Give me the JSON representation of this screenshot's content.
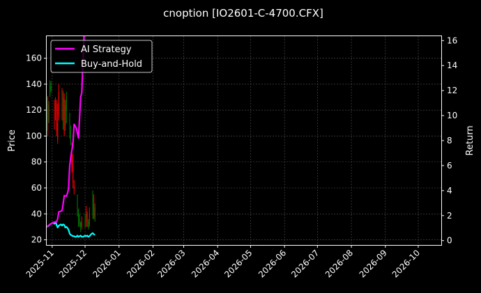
{
  "chart_data": {
    "type": "candlestick+line",
    "title": "cnoption [IO2601-C-4700.CFX]",
    "xlabel": "",
    "ylabel_left": "Price",
    "ylabel_right": "Return",
    "grid": true,
    "legend_placement": "top-left",
    "x_ticks": [
      "2025-11",
      "2025-12",
      "2026-01",
      "2026-02",
      "2026-03",
      "2026-04",
      "2026-05",
      "2026-06",
      "2026-07",
      "2026-08",
      "2026-09",
      "2026-10"
    ],
    "x_range": [
      "2025-10-27",
      "2026-10-22"
    ],
    "y_left": {
      "ticks": [
        20,
        40,
        60,
        80,
        100,
        120,
        140,
        160
      ],
      "range": [
        16,
        177
      ]
    },
    "y_right": {
      "ticks": [
        0,
        2,
        4,
        6,
        8,
        10,
        12,
        14,
        16
      ],
      "range": [
        -0.35,
        16.35
      ]
    },
    "colors": {
      "background": "#000000",
      "up": "#008000",
      "down": "#ff0000",
      "ai_strategy": "#ff00ff",
      "buy_and_hold": "#00ffff",
      "grid": "#555555",
      "text": "#ffffff"
    },
    "candles": [
      {
        "date": "2025-10-27",
        "open": 118,
        "high": 130,
        "low": 104,
        "close": 125
      },
      {
        "date": "2025-10-28",
        "open": 125,
        "high": 131,
        "low": 100,
        "close": 110
      },
      {
        "date": "2025-10-29",
        "open": 112,
        "high": 127,
        "low": 110,
        "close": 124
      },
      {
        "date": "2025-10-30",
        "open": 132,
        "high": 143,
        "low": 130,
        "close": 140
      },
      {
        "date": "2025-10-31",
        "open": 136,
        "high": 142,
        "low": 134,
        "close": 138
      },
      {
        "date": "2025-11-03",
        "open": 118,
        "high": 128,
        "low": 105,
        "close": 115
      },
      {
        "date": "2025-11-04",
        "open": 126,
        "high": 130,
        "low": 112,
        "close": 120
      },
      {
        "date": "2025-11-05",
        "open": 125,
        "high": 128,
        "low": 100,
        "close": 104
      },
      {
        "date": "2025-11-06",
        "open": 110,
        "high": 125,
        "low": 94,
        "close": 97
      },
      {
        "date": "2025-11-07",
        "open": 134,
        "high": 140,
        "low": 112,
        "close": 116
      },
      {
        "date": "2025-11-10",
        "open": 132,
        "high": 137,
        "low": 112,
        "close": 115
      },
      {
        "date": "2025-11-11",
        "open": 112,
        "high": 135,
        "low": 105,
        "close": 130
      },
      {
        "date": "2025-11-12",
        "open": 128,
        "high": 133,
        "low": 100,
        "close": 102
      },
      {
        "date": "2025-11-13",
        "open": 108,
        "high": 128,
        "low": 104,
        "close": 124
      },
      {
        "date": "2025-11-14",
        "open": 120,
        "high": 134,
        "low": 110,
        "close": 130
      },
      {
        "date": "2025-11-17",
        "open": 105,
        "high": 118,
        "low": 98,
        "close": 115
      },
      {
        "date": "2025-11-18",
        "open": 95,
        "high": 108,
        "low": 93,
        "close": 104
      },
      {
        "date": "2025-11-19",
        "open": 90,
        "high": 95,
        "low": 72,
        "close": 75
      },
      {
        "date": "2025-11-20",
        "open": 78,
        "high": 86,
        "low": 60,
        "close": 64
      },
      {
        "date": "2025-11-21",
        "open": 62,
        "high": 66,
        "low": 55,
        "close": 58
      },
      {
        "date": "2025-11-24",
        "open": 40,
        "high": 55,
        "low": 38,
        "close": 52
      },
      {
        "date": "2025-11-25",
        "open": 36,
        "high": 44,
        "low": 30,
        "close": 40
      },
      {
        "date": "2025-11-26",
        "open": 32,
        "high": 40,
        "low": 30,
        "close": 36
      },
      {
        "date": "2025-11-27",
        "open": 30,
        "high": 34,
        "low": 26,
        "close": 33
      },
      {
        "date": "2025-11-28",
        "open": 34,
        "high": 38,
        "low": 28,
        "close": 30
      },
      {
        "date": "2025-12-01",
        "open": 30,
        "high": 40,
        "low": 29,
        "close": 38
      },
      {
        "date": "2025-12-02",
        "open": 36,
        "high": 46,
        "low": 30,
        "close": 34
      },
      {
        "date": "2025-12-03",
        "open": 36,
        "high": 42,
        "low": 30,
        "close": 40
      },
      {
        "date": "2025-12-04",
        "open": 30,
        "high": 36,
        "low": 28,
        "close": 34
      },
      {
        "date": "2025-12-05",
        "open": 40,
        "high": 45,
        "low": 30,
        "close": 32
      },
      {
        "date": "2025-12-08",
        "open": 40,
        "high": 58,
        "low": 36,
        "close": 55
      },
      {
        "date": "2025-12-09",
        "open": 52,
        "high": 55,
        "low": 36,
        "close": 38
      },
      {
        "date": "2025-12-10",
        "open": 36,
        "high": 48,
        "low": 34,
        "close": 45
      }
    ],
    "series": [
      {
        "name": "AI Strategy",
        "axis": "right",
        "points": [
          [
            "2025-10-27",
            1.1
          ],
          [
            "2025-10-30",
            1.3
          ],
          [
            "2025-11-02",
            1.45
          ],
          [
            "2025-11-04",
            1.5
          ],
          [
            "2025-11-05",
            1.5
          ],
          [
            "2025-11-06",
            1.75
          ],
          [
            "2025-11-07",
            2.3
          ],
          [
            "2025-11-09",
            2.35
          ],
          [
            "2025-11-10",
            2.4
          ],
          [
            "2025-11-11",
            2.95
          ],
          [
            "2025-11-12",
            3.6
          ],
          [
            "2025-11-14",
            3.55
          ],
          [
            "2025-11-15",
            3.8
          ],
          [
            "2025-11-16",
            4.2
          ],
          [
            "2025-11-17",
            6.0
          ],
          [
            "2025-11-18",
            6.7
          ],
          [
            "2025-11-20",
            7.8
          ],
          [
            "2025-11-21",
            9.3
          ],
          [
            "2025-11-23",
            9.0
          ],
          [
            "2025-11-25",
            8.2
          ],
          [
            "2025-11-27",
            11.5
          ],
          [
            "2025-11-28",
            11.8
          ],
          [
            "2025-11-29",
            14.2
          ],
          [
            "2025-11-30",
            16.4
          ]
        ]
      },
      {
        "name": "Buy-and-Hold",
        "axis": "right",
        "points": [
          [
            "2025-10-27",
            1.1
          ],
          [
            "2025-10-28",
            1.15
          ],
          [
            "2025-10-29",
            1.2
          ],
          [
            "2025-10-30",
            1.3
          ],
          [
            "2025-10-31",
            1.35
          ],
          [
            "2025-11-01",
            1.4
          ],
          [
            "2025-11-02",
            1.45
          ],
          [
            "2025-11-03",
            1.35
          ],
          [
            "2025-11-04",
            1.5
          ],
          [
            "2025-11-05",
            1.25
          ],
          [
            "2025-11-06",
            1.05
          ],
          [
            "2025-11-07",
            1.2
          ],
          [
            "2025-11-08",
            1.25
          ],
          [
            "2025-11-09",
            1.3
          ],
          [
            "2025-11-10",
            1.2
          ],
          [
            "2025-11-11",
            1.3
          ],
          [
            "2025-11-12",
            1.25
          ],
          [
            "2025-11-13",
            1.05
          ],
          [
            "2025-11-14",
            1.1
          ],
          [
            "2025-11-15",
            1.0
          ],
          [
            "2025-11-16",
            0.85
          ],
          [
            "2025-11-17",
            0.55
          ],
          [
            "2025-11-18",
            0.45
          ],
          [
            "2025-11-19",
            0.4
          ],
          [
            "2025-11-20",
            0.35
          ],
          [
            "2025-11-21",
            0.35
          ],
          [
            "2025-11-22",
            0.3
          ],
          [
            "2025-11-23",
            0.3
          ],
          [
            "2025-11-24",
            0.4
          ],
          [
            "2025-11-25",
            0.3
          ],
          [
            "2025-11-26",
            0.35
          ],
          [
            "2025-11-27",
            0.4
          ],
          [
            "2025-11-28",
            0.3
          ],
          [
            "2025-11-29",
            0.3
          ],
          [
            "2025-11-30",
            0.35
          ],
          [
            "2025-12-01",
            0.4
          ],
          [
            "2025-12-02",
            0.35
          ],
          [
            "2025-12-03",
            0.4
          ],
          [
            "2025-12-04",
            0.3
          ],
          [
            "2025-12-05",
            0.35
          ],
          [
            "2025-12-06",
            0.45
          ],
          [
            "2025-12-07",
            0.55
          ],
          [
            "2025-12-08",
            0.6
          ],
          [
            "2025-12-09",
            0.5
          ],
          [
            "2025-12-10",
            0.45
          ]
        ]
      }
    ]
  }
}
